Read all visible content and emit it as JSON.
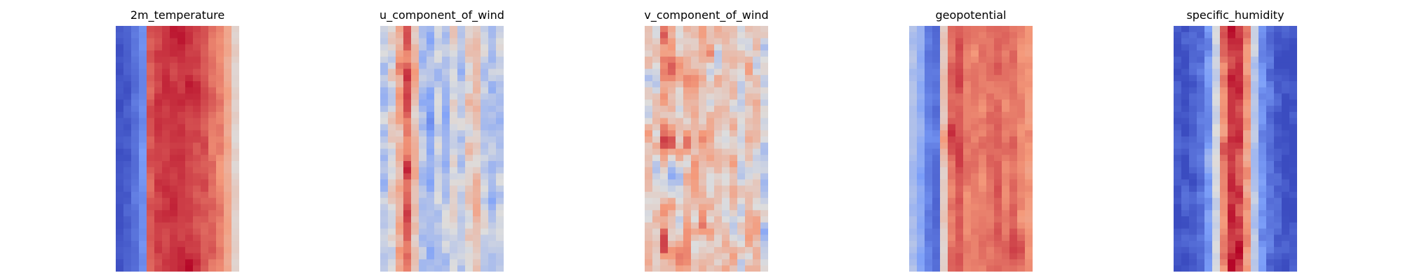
{
  "chart_data": [
    {
      "type": "heatmap",
      "title": "2m_temperature",
      "colormap": "coolwarm",
      "axes_visible": false,
      "grid": false,
      "column_profile": [
        0.03,
        0.05,
        0.12,
        0.2,
        0.86,
        0.9,
        0.91,
        0.91,
        0.9,
        0.89,
        0.88,
        0.86,
        0.83,
        0.78,
        0.7,
        0.55
      ],
      "row_variation": 0.05,
      "hotspots": [
        {
          "row": 0.02,
          "col": 0.56,
          "delta": 0.08
        },
        {
          "row": 0.25,
          "col": 0.64,
          "delta": 0.06
        },
        {
          "row": 0.98,
          "col": 0.58,
          "delta": 0.08
        }
      ]
    },
    {
      "type": "heatmap",
      "title": "u_component_of_wind",
      "colormap": "coolwarm",
      "axes_visible": false,
      "grid": false,
      "column_profile": [
        0.42,
        0.52,
        0.68,
        0.8,
        0.58,
        0.38,
        0.33,
        0.42,
        0.4,
        0.52,
        0.4,
        0.55,
        0.6,
        0.45,
        0.38,
        0.42
      ],
      "row_variation": 0.14,
      "hotspots": [
        {
          "row": 0.18,
          "col": 0.22,
          "delta": 0.12
        },
        {
          "row": 0.55,
          "col": 0.25,
          "delta": 0.1
        },
        {
          "row": 0.35,
          "col": 0.72,
          "delta": 0.08
        }
      ]
    },
    {
      "type": "heatmap",
      "title": "v_component_of_wind",
      "colormap": "coolwarm",
      "axes_visible": false,
      "grid": false,
      "column_profile": [
        0.55,
        0.5,
        0.66,
        0.62,
        0.6,
        0.64,
        0.66,
        0.64,
        0.62,
        0.6,
        0.6,
        0.58,
        0.55,
        0.6,
        0.58,
        0.48
      ],
      "row_variation": 0.22,
      "hotspots": [
        {
          "row": 0.62,
          "col": 0.2,
          "delta": -0.3
        },
        {
          "row": 0.5,
          "col": 0.12,
          "delta": 0.2
        },
        {
          "row": 0.16,
          "col": 0.2,
          "delta": 0.22
        },
        {
          "row": 0.9,
          "col": 0.12,
          "delta": 0.2
        }
      ]
    },
    {
      "type": "heatmap",
      "title": "geopotential",
      "colormap": "coolwarm",
      "axes_visible": false,
      "grid": false,
      "column_profile": [
        0.38,
        0.3,
        0.15,
        0.1,
        0.58,
        0.82,
        0.85,
        0.8,
        0.8,
        0.8,
        0.82,
        0.84,
        0.8,
        0.82,
        0.78,
        0.75
      ],
      "row_variation": 0.06,
      "hotspots": [
        {
          "row": 0.45,
          "col": 0.28,
          "delta": 0.14
        },
        {
          "row": 0.2,
          "col": 0.3,
          "delta": 0.08
        },
        {
          "row": 0.9,
          "col": 0.9,
          "delta": 0.1
        }
      ]
    },
    {
      "type": "heatmap",
      "title": "specific_humidity",
      "colormap": "coolwarm",
      "axes_visible": false,
      "grid": false,
      "column_profile": [
        0.03,
        0.02,
        0.06,
        0.12,
        0.22,
        0.45,
        0.78,
        0.92,
        0.9,
        0.74,
        0.42,
        0.2,
        0.12,
        0.06,
        0.03,
        0.02
      ],
      "row_variation": 0.1,
      "hotspots": [
        {
          "row": 0.05,
          "col": 0.5,
          "delta": 0.08
        },
        {
          "row": 0.55,
          "col": 0.35,
          "delta": 0.1
        },
        {
          "row": 0.95,
          "col": 0.5,
          "delta": 0.08
        }
      ]
    }
  ]
}
